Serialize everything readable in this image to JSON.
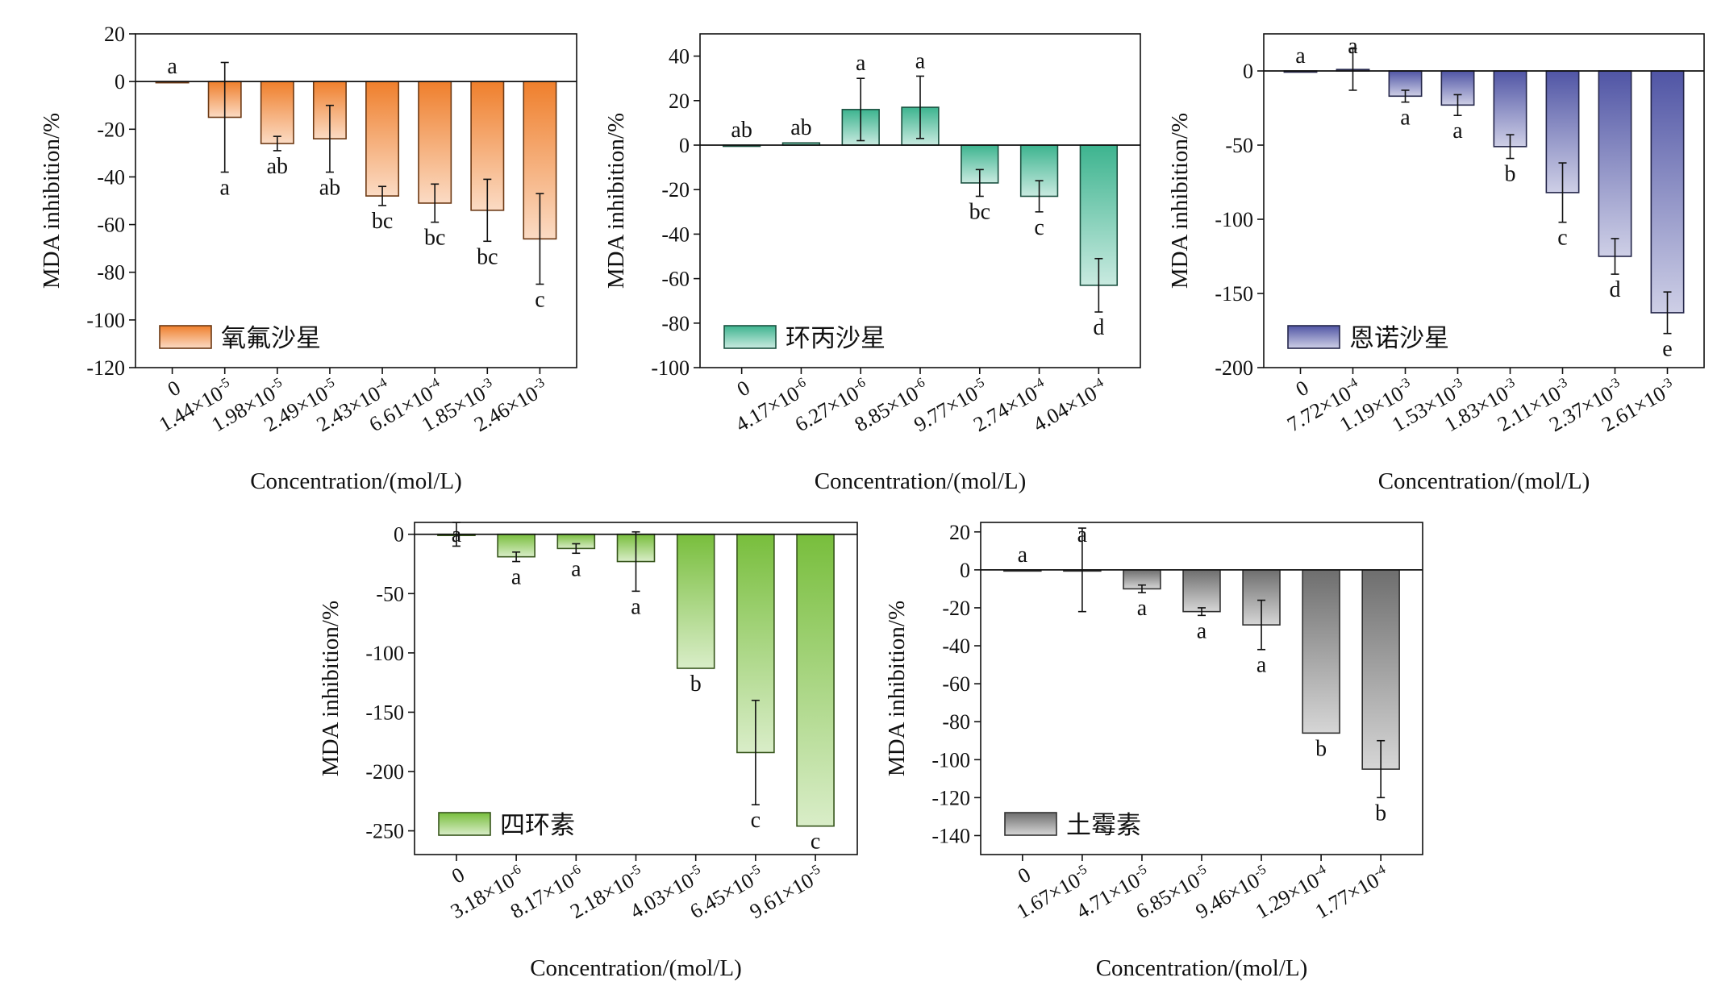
{
  "chart_data": [
    {
      "type": "bar",
      "xlabel": "Concentration/(mol/L)",
      "ylabel": "MDA inhibition/%",
      "ylim": [
        -120,
        20
      ],
      "yticks": [
        20,
        0,
        -20,
        -40,
        -60,
        -80,
        -100,
        -120
      ],
      "legend_position": "bottom-left",
      "color": "#ef7f2c",
      "series": [
        {
          "name": "氧氟沙星",
          "values": [
            0,
            -15,
            -26,
            -24,
            -48,
            -51,
            -54,
            -66
          ],
          "errors": [
            0,
            23,
            3,
            14,
            4,
            8,
            13,
            19
          ],
          "labels": [
            "a",
            "a",
            "ab",
            "ab",
            "bc",
            "bc",
            "bc",
            "c"
          ]
        }
      ],
      "categories": [
        {
          "m": "0",
          "e": ""
        },
        {
          "m": "1.44×10",
          "e": "-5"
        },
        {
          "m": "1.98×10",
          "e": "-5"
        },
        {
          "m": "2.49×10",
          "e": "-5"
        },
        {
          "m": "2.43×10",
          "e": "-4"
        },
        {
          "m": "6.61×10",
          "e": "-4"
        },
        {
          "m": "1.85×10",
          "e": "-3"
        },
        {
          "m": "2.46×10",
          "e": "-3"
        }
      ]
    },
    {
      "type": "bar",
      "xlabel": "Concentration/(mol/L)",
      "ylabel": "MDA inhibition/%",
      "ylim": [
        -100,
        50
      ],
      "yticks": [
        40,
        20,
        0,
        -20,
        -40,
        -60,
        -80,
        -100
      ],
      "legend_position": "bottom-left",
      "color": "#3db48f",
      "series": [
        {
          "name": "环丙沙星",
          "values": [
            0,
            1,
            16,
            17,
            -17,
            -23,
            -63
          ],
          "errors": [
            0,
            0,
            14,
            14,
            6,
            7,
            12
          ],
          "labels": [
            "ab",
            "ab",
            "a",
            "a",
            "bc",
            "c",
            "d"
          ]
        }
      ],
      "categories": [
        {
          "m": "0",
          "e": ""
        },
        {
          "m": "4.17×10",
          "e": "-6"
        },
        {
          "m": "6.27×10",
          "e": "-6"
        },
        {
          "m": "8.85×10",
          "e": "-6"
        },
        {
          "m": "9.77×10",
          "e": "-5"
        },
        {
          "m": "2.74×10",
          "e": "-4"
        },
        {
          "m": "4.04×10",
          "e": "-4"
        }
      ]
    },
    {
      "type": "bar",
      "xlabel": "Concentration/(mol/L)",
      "ylabel": "MDA inhibition/%",
      "ylim": [
        -200,
        25
      ],
      "yticks": [
        0,
        -50,
        -100,
        -150,
        -200
      ],
      "legend_position": "bottom-left",
      "color": "#5055a5",
      "series": [
        {
          "name": "恩诺沙星",
          "values": [
            0,
            1,
            -17,
            -23,
            -51,
            -82,
            -125,
            -163
          ],
          "errors": [
            0,
            14,
            4,
            7,
            8,
            20,
            12,
            14
          ],
          "labels": [
            "a",
            "a",
            "a",
            "a",
            "b",
            "c",
            "d",
            "e"
          ]
        }
      ],
      "categories": [
        {
          "m": "0",
          "e": ""
        },
        {
          "m": "7.72×10",
          "e": "-4"
        },
        {
          "m": "1.19×10",
          "e": "-3"
        },
        {
          "m": "1.53×10",
          "e": "-3"
        },
        {
          "m": "1.83×10",
          "e": "-3"
        },
        {
          "m": "2.11×10",
          "e": "-3"
        },
        {
          "m": "2.37×10",
          "e": "-3"
        },
        {
          "m": "2.61×10",
          "e": "-3"
        }
      ]
    },
    {
      "type": "bar",
      "xlabel": "Concentration/(mol/L)",
      "ylabel": "MDA inhibition/%",
      "ylim": [
        -270,
        10
      ],
      "yticks": [
        0,
        -50,
        -100,
        -150,
        -200,
        -250
      ],
      "legend_position": "bottom-left",
      "color": "#78be3c",
      "series": [
        {
          "name": "四环素",
          "values": [
            0,
            -19,
            -12,
            -23,
            -113,
            -184,
            -246
          ],
          "errors": [
            10,
            4,
            4,
            25,
            0,
            44,
            0
          ],
          "labels": [
            "a",
            "a",
            "a",
            "a",
            "b",
            "c",
            "c"
          ]
        }
      ],
      "categories": [
        {
          "m": "0",
          "e": ""
        },
        {
          "m": "3.18×10",
          "e": "-6"
        },
        {
          "m": "8.17×10",
          "e": "-6"
        },
        {
          "m": "2.18×10",
          "e": "-5"
        },
        {
          "m": "4.03×10",
          "e": "-5"
        },
        {
          "m": "6.45×10",
          "e": "-5"
        },
        {
          "m": "9.61×10",
          "e": "-5"
        }
      ]
    },
    {
      "type": "bar",
      "xlabel": "Concentration/(mol/L)",
      "ylabel": "MDA inhibition/%",
      "ylim": [
        -150,
        25
      ],
      "yticks": [
        20,
        0,
        -20,
        -40,
        -60,
        -80,
        -100,
        -120,
        -140
      ],
      "legend_position": "bottom-left",
      "color": "#6e6e6e",
      "series": [
        {
          "name": "土霉素",
          "values": [
            0,
            0,
            -10,
            -22,
            -29,
            -86,
            -105
          ],
          "errors": [
            0,
            22,
            2,
            2,
            13,
            0,
            15
          ],
          "labels": [
            "a",
            "a",
            "a",
            "a",
            "a",
            "b",
            "b"
          ]
        }
      ],
      "categories": [
        {
          "m": "0",
          "e": ""
        },
        {
          "m": "1.67×10",
          "e": "-5"
        },
        {
          "m": "4.71×10",
          "e": "-5"
        },
        {
          "m": "6.85×10",
          "e": "-5"
        },
        {
          "m": "9.46×10",
          "e": "-5"
        },
        {
          "m": "1.29×10",
          "e": "-4"
        },
        {
          "m": "1.77×10",
          "e": "-4"
        }
      ]
    }
  ]
}
